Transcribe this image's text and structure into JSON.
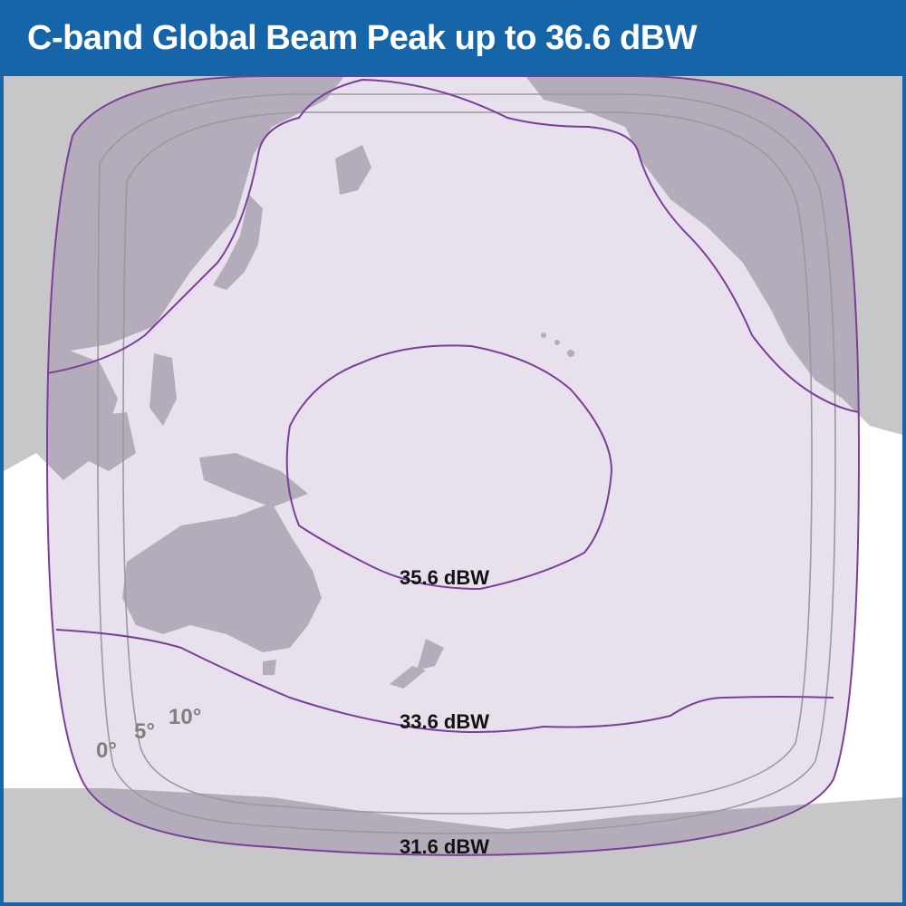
{
  "title": "C-band Global Beam Peak up to 36.6 dBW",
  "contours": [
    {
      "label": "35.6 dBW"
    },
    {
      "label": "33.6 dBW"
    },
    {
      "label": "31.6 dBW"
    }
  ],
  "elevation_angles": [
    {
      "label": "0°"
    },
    {
      "label": "5°"
    },
    {
      "label": "10°"
    }
  ],
  "colors": {
    "banner": "#1565a8",
    "beam_fill": "#e9e0ee",
    "beam_outline": "#7b3f9a",
    "land_outside": "#c7c7c9",
    "land_inside": "#b4acba",
    "elevation_lines": "#9a9a9a"
  }
}
